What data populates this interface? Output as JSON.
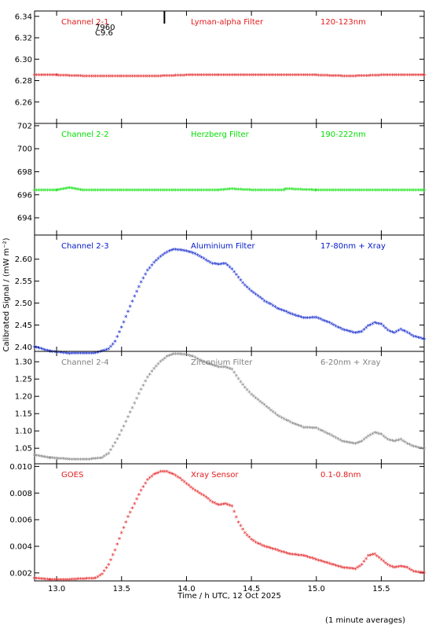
{
  "xlabel": "Time / h UTC, 12 Oct 2025",
  "ylabel": "Calibrated Signal / (mW m⁻²)",
  "footnote": "(1 minute averages)",
  "x_range": [
    12.83,
    15.83
  ],
  "x_ticks": [
    "13.0",
    "13.5",
    "14.0",
    "14.5",
    "15.0",
    "15.5"
  ],
  "x_tick_values": [
    13.0,
    13.5,
    14.0,
    14.5,
    15.0,
    15.5
  ],
  "marker": "asterisk",
  "chart_data": [
    {
      "type": "scatter",
      "channel": "Channel 2-1",
      "filter": "Lyman-alpha Filter",
      "band": "120-123nm",
      "color": "#e31a1c",
      "ylim": [
        6.24,
        6.345
      ],
      "yticks": [
        6.26,
        6.28,
        6.3,
        6.32,
        6.34
      ],
      "ytick_labels": [
        "6.26",
        "6.28",
        "6.30",
        "6.32",
        "6.34"
      ],
      "annotation_lines": [
        "7960",
        "C9.6"
      ],
      "event_marker_x": 13.83,
      "x": [
        12.83,
        13.0,
        13.25,
        13.5,
        13.75,
        14.0,
        14.25,
        14.5,
        14.75,
        15.0,
        15.25,
        15.5,
        15.83
      ],
      "y": [
        6.285,
        6.285,
        6.284,
        6.284,
        6.284,
        6.285,
        6.285,
        6.285,
        6.285,
        6.285,
        6.284,
        6.285,
        6.285
      ]
    },
    {
      "type": "scatter",
      "channel": "Channel 2-2",
      "filter": "Herzberg Filter",
      "band": "190-222nm",
      "color": "#00e000",
      "ylim": [
        692.5,
        702.2
      ],
      "yticks": [
        694,
        696,
        698,
        700,
        702
      ],
      "ytick_labels": [
        "694",
        "696",
        "698",
        "700",
        "702"
      ],
      "x": [
        12.83,
        13.0,
        13.1,
        13.2,
        13.5,
        13.75,
        14.0,
        14.25,
        14.35,
        14.5,
        14.75,
        14.76,
        15.0,
        15.25,
        15.5,
        15.83
      ],
      "y": [
        696.4,
        696.4,
        696.6,
        696.4,
        696.4,
        696.4,
        696.4,
        696.4,
        696.5,
        696.4,
        696.4,
        696.5,
        696.4,
        696.4,
        696.4,
        696.4
      ]
    },
    {
      "type": "scatter",
      "channel": "Channel 2-3",
      "filter": "Aluminium Filter",
      "band": "17-80nm + Xray",
      "color": "#0018c8",
      "ylim": [
        2.39,
        2.655
      ],
      "yticks": [
        2.4,
        2.45,
        2.5,
        2.55,
        2.6
      ],
      "ytick_labels": [
        "2.40",
        "2.45",
        "2.50",
        "2.55",
        "2.60"
      ],
      "x": [
        12.83,
        12.95,
        13.1,
        13.3,
        13.4,
        13.45,
        13.5,
        13.55,
        13.6,
        13.65,
        13.7,
        13.75,
        13.8,
        13.85,
        13.9,
        13.95,
        14.0,
        14.05,
        14.1,
        14.15,
        14.2,
        14.25,
        14.3,
        14.35,
        14.4,
        14.45,
        14.5,
        14.55,
        14.6,
        14.65,
        14.7,
        14.8,
        14.9,
        15.0,
        15.1,
        15.2,
        15.3,
        15.35,
        15.4,
        15.45,
        15.5,
        15.55,
        15.6,
        15.65,
        15.7,
        15.75,
        15.83
      ],
      "y": [
        2.4,
        2.39,
        2.385,
        2.386,
        2.395,
        2.412,
        2.445,
        2.48,
        2.515,
        2.548,
        2.574,
        2.592,
        2.606,
        2.616,
        2.622,
        2.621,
        2.618,
        2.614,
        2.607,
        2.598,
        2.59,
        2.588,
        2.59,
        2.577,
        2.558,
        2.54,
        2.527,
        2.516,
        2.505,
        2.497,
        2.488,
        2.476,
        2.466,
        2.467,
        2.455,
        2.44,
        2.432,
        2.435,
        2.448,
        2.455,
        2.452,
        2.438,
        2.432,
        2.44,
        2.433,
        2.424,
        2.418
      ]
    },
    {
      "type": "scatter",
      "channel": "Channel 2-4",
      "filter": "Zirconium Filter",
      "band": "6-20nm + Xray",
      "color": "#808080",
      "ylim": [
        1.005,
        1.33
      ],
      "yticks": [
        1.05,
        1.1,
        1.15,
        1.2,
        1.25,
        1.3
      ],
      "ytick_labels": [
        "1.05",
        "1.10",
        "1.15",
        "1.20",
        "1.25",
        "1.30"
      ],
      "x": [
        12.83,
        12.95,
        13.1,
        13.25,
        13.35,
        13.4,
        13.45,
        13.5,
        13.55,
        13.6,
        13.65,
        13.7,
        13.75,
        13.8,
        13.85,
        13.9,
        13.95,
        14.0,
        14.05,
        14.1,
        14.15,
        14.2,
        14.25,
        14.3,
        14.35,
        14.4,
        14.45,
        14.5,
        14.55,
        14.6,
        14.65,
        14.7,
        14.8,
        14.9,
        15.0,
        15.1,
        15.2,
        15.3,
        15.35,
        15.4,
        15.45,
        15.5,
        15.55,
        15.6,
        15.65,
        15.7,
        15.75,
        15.83
      ],
      "y": [
        1.03,
        1.022,
        1.018,
        1.018,
        1.022,
        1.035,
        1.065,
        1.1,
        1.14,
        1.18,
        1.22,
        1.255,
        1.28,
        1.3,
        1.315,
        1.322,
        1.322,
        1.32,
        1.315,
        1.305,
        1.297,
        1.29,
        1.285,
        1.285,
        1.278,
        1.25,
        1.225,
        1.205,
        1.19,
        1.175,
        1.16,
        1.145,
        1.125,
        1.11,
        1.108,
        1.09,
        1.07,
        1.063,
        1.07,
        1.085,
        1.095,
        1.09,
        1.075,
        1.07,
        1.075,
        1.063,
        1.055,
        1.048
      ]
    },
    {
      "type": "scatter",
      "channel": "GOES",
      "filter": "Xray Sensor",
      "band": "0.1-0.8nm",
      "color": "#e31a1c",
      "ylim": [
        0.0014,
        0.0102
      ],
      "yticks": [
        0.002,
        0.004,
        0.006,
        0.008,
        0.01
      ],
      "ytick_labels": [
        "0.002",
        "0.004",
        "0.006",
        "0.008",
        "0.010"
      ],
      "x": [
        12.83,
        12.95,
        13.1,
        13.3,
        13.35,
        13.4,
        13.45,
        13.5,
        13.55,
        13.6,
        13.65,
        13.7,
        13.75,
        13.8,
        13.85,
        13.9,
        13.95,
        14.0,
        14.05,
        14.1,
        14.15,
        14.2,
        14.25,
        14.3,
        14.35,
        14.4,
        14.45,
        14.5,
        14.55,
        14.6,
        14.7,
        14.8,
        14.9,
        15.0,
        15.1,
        15.2,
        15.3,
        15.35,
        15.4,
        15.45,
        15.5,
        15.55,
        15.6,
        15.65,
        15.7,
        15.75,
        15.83
      ],
      "y": [
        0.0016,
        0.0015,
        0.0015,
        0.0016,
        0.0019,
        0.0026,
        0.0037,
        0.005,
        0.0062,
        0.0072,
        0.0082,
        0.009,
        0.0094,
        0.0096,
        0.0096,
        0.0094,
        0.0091,
        0.0087,
        0.0083,
        0.008,
        0.0077,
        0.0073,
        0.0071,
        0.0072,
        0.007,
        0.0058,
        0.005,
        0.0045,
        0.0042,
        0.004,
        0.0037,
        0.0034,
        0.0033,
        0.003,
        0.0027,
        0.0024,
        0.0023,
        0.0026,
        0.0033,
        0.0034,
        0.003,
        0.0026,
        0.0024,
        0.0025,
        0.0024,
        0.0021,
        0.002
      ]
    }
  ]
}
